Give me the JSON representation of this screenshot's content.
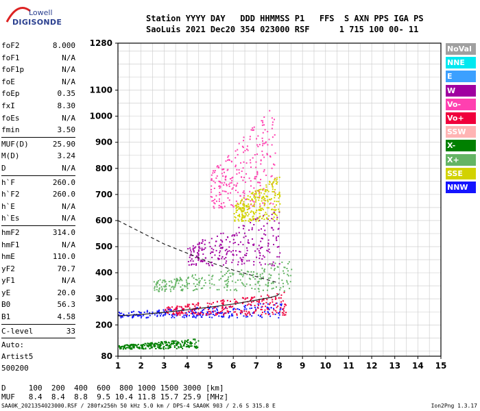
{
  "logo": {
    "line1": "Lowell",
    "line2": "DIGISONDE"
  },
  "header": {
    "line1": "Station YYYY DAY   DDD HHMMSS P1   FFS  S AXN PPS IGA PS",
    "line2": "SaoLuis 2021 Dec20 354 023000 RSF      1 715 100 00- 11"
  },
  "params": [
    {
      "k": "foF2",
      "v": "8.000"
    },
    {
      "k": "foF1",
      "v": "N/A"
    },
    {
      "k": "foF1p",
      "v": "N/A"
    },
    {
      "k": "foE",
      "v": "N/A"
    },
    {
      "k": "foEp",
      "v": "0.35"
    },
    {
      "k": "fxI",
      "v": "8.30"
    },
    {
      "k": "foEs",
      "v": "N/A"
    },
    {
      "k": "fmin",
      "v": "3.50"
    },
    {
      "k": "MUF(D)",
      "v": "25.90",
      "sep": true
    },
    {
      "k": "M(D)",
      "v": "3.24"
    },
    {
      "k": "D",
      "v": "N/A"
    },
    {
      "k": "h`F",
      "v": "260.0",
      "sep": true
    },
    {
      "k": "h`F2",
      "v": "260.0"
    },
    {
      "k": "h`E",
      "v": "N/A"
    },
    {
      "k": "h`Es",
      "v": "N/A"
    },
    {
      "k": "hmF2",
      "v": "314.0",
      "sep": true
    },
    {
      "k": "hmF1",
      "v": "N/A"
    },
    {
      "k": "hmE",
      "v": "110.0"
    },
    {
      "k": "yF2",
      "v": "70.7"
    },
    {
      "k": "yF1",
      "v": "N/A"
    },
    {
      "k": "yE",
      "v": "20.0"
    },
    {
      "k": "B0",
      "v": "56.3"
    },
    {
      "k": "B1",
      "v": "4.58"
    },
    {
      "k": "C-level",
      "v": "33",
      "sep": true
    }
  ],
  "auto": [
    "Auto:",
    "Artist5",
    "500200"
  ],
  "legend": [
    {
      "label": "NoVal",
      "color": "#a0a0a0"
    },
    {
      "label": "NNE",
      "color": "#00e8f0"
    },
    {
      "label": "E",
      "color": "#3ca0ff"
    },
    {
      "label": "W",
      "color": "#a000a0"
    },
    {
      "label": "Vo-",
      "color": "#ff40b0"
    },
    {
      "label": "Vo+",
      "color": "#f0003c"
    },
    {
      "label": "SSW",
      "color": "#ffb4b4"
    },
    {
      "label": "X-",
      "color": "#008000"
    },
    {
      "label": "X+",
      "color": "#64b464"
    },
    {
      "label": "SSE",
      "color": "#d2d200"
    },
    {
      "label": "NNW",
      "color": "#1414ff"
    }
  ],
  "muf_table": {
    "d_line": "D     100  200  400  600  800 1000 1500 3000 [km]",
    "muf_line": "MUF   8.4  8.4  8.8  9.5 10.4 11.8 15.7 25.9 [MHz]"
  },
  "footer": {
    "left": "SAA0K_2021354023000.RSF / 280fx256h 50 kHz 5.0 km / DPS-4 SAA0K 903 / 2.6 S 315.8 E",
    "right": "Ion2Png 1.3.17"
  },
  "chart_data": {
    "type": "scatter",
    "x_ticks": [
      "1",
      "2",
      "3",
      "4",
      "5",
      "6",
      "7",
      "8",
      "9",
      "10",
      "11",
      "12",
      "13",
      "14",
      "15"
    ],
    "y_ticks": [
      "80",
      "200",
      "300",
      "400",
      "500",
      "600",
      "700",
      "800",
      "900",
      "1000",
      "1100",
      "1280"
    ],
    "xlim": [
      1,
      15
    ],
    "ylim": [
      80,
      1280
    ],
    "grid": true,
    "traces": [
      {
        "name": "o-trace",
        "x": [
          1.0,
          2.0,
          3.0,
          4.0,
          5.0,
          6.0,
          7.0,
          7.6,
          7.9,
          8.0
        ],
        "y": [
          235,
          240,
          248,
          258,
          268,
          280,
          295,
          305,
          312,
          320
        ]
      },
      {
        "name": "virtual-height-curve",
        "x": [
          1.0,
          3.0,
          5.0,
          6.0,
          7.0,
          7.6,
          8.0
        ],
        "y": [
          600,
          510,
          440,
          410,
          385,
          370,
          360
        ]
      }
    ],
    "scatter_bands": [
      {
        "color": "#1414ff",
        "x0": 1.0,
        "x1": 8.3,
        "y0": 230,
        "y1": 290
      },
      {
        "color": "#f0003c",
        "x0": 3.0,
        "x1": 8.3,
        "y0": 240,
        "y1": 330
      },
      {
        "color": "#a000a0",
        "x0": 4.0,
        "x1": 8.0,
        "y0": 430,
        "y1": 650
      },
      {
        "color": "#ff40b0",
        "x0": 5.0,
        "x1": 7.8,
        "y0": 650,
        "y1": 1050
      },
      {
        "color": "#008000",
        "x0": 1.0,
        "x1": 4.5,
        "y0": 110,
        "y1": 150
      },
      {
        "color": "#64b464",
        "x0": 2.5,
        "x1": 8.5,
        "y0": 330,
        "y1": 450
      },
      {
        "color": "#d2d200",
        "x0": 6.0,
        "x1": 8.0,
        "y0": 600,
        "y1": 780
      }
    ]
  }
}
